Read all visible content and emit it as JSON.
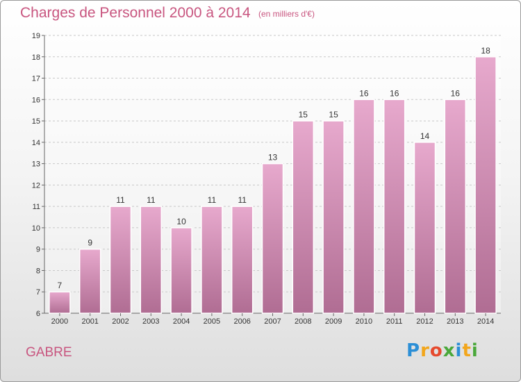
{
  "header": {
    "title": "Charges de Personnel 2000 à 2014",
    "subtitle": "(en milliers d'€)"
  },
  "footer": {
    "town": "GABRE",
    "logo_letters": [
      "P",
      "r",
      "o",
      "x",
      "i",
      "t",
      "i"
    ],
    "logo_colors": [
      "#2c8fd6",
      "#f2a61c",
      "#e64a2e",
      "#4aa83a",
      "#2c8fd6",
      "#f2a61c",
      "#4aa83a"
    ]
  },
  "colors": {
    "title": "#c8557f",
    "bar_top": "#e7a9cd",
    "bar_bottom": "#b06d93",
    "grid": "#c8c8c8"
  },
  "chart_data": {
    "type": "bar",
    "title": "Charges de Personnel 2000 à 2014",
    "subtitle": "(en milliers d'€)",
    "categories": [
      "2000",
      "2001",
      "2002",
      "2003",
      "2004",
      "2005",
      "2006",
      "2007",
      "2008",
      "2009",
      "2010",
      "2011",
      "2012",
      "2013",
      "2014"
    ],
    "values": [
      7,
      9,
      11,
      11,
      10,
      11,
      11,
      13,
      15,
      15,
      16,
      16,
      14,
      16,
      18
    ],
    "ylim": [
      6,
      19
    ],
    "yticks": [
      6,
      7,
      8,
      9,
      10,
      11,
      12,
      13,
      14,
      15,
      16,
      17,
      18,
      19
    ],
    "grid": true,
    "legend": "none"
  }
}
